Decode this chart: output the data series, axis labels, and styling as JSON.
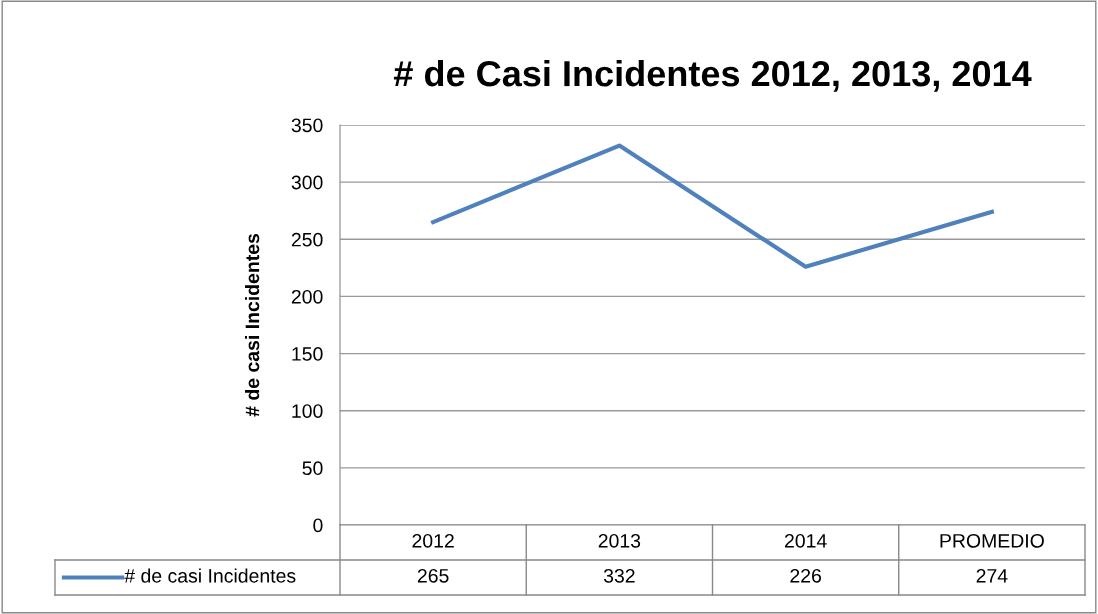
{
  "chart_data": {
    "type": "line",
    "title": "# de Casi Incidentes 2012, 2013, 2014",
    "ylabel": "# de casi Incidentes",
    "categories": [
      "2012",
      "2013",
      "2014",
      "PROMEDIO"
    ],
    "series": [
      {
        "name": "# de casi Incidentes",
        "color": "#4f81bd",
        "values": [
          265,
          332,
          226,
          274
        ]
      }
    ],
    "ylim": [
      0,
      350
    ],
    "yticks": [
      0,
      50,
      100,
      150,
      200,
      250,
      300,
      350
    ],
    "grid": "y",
    "legend": "bottom",
    "data_labels": true,
    "marker": "none",
    "line_style": "solid"
  }
}
